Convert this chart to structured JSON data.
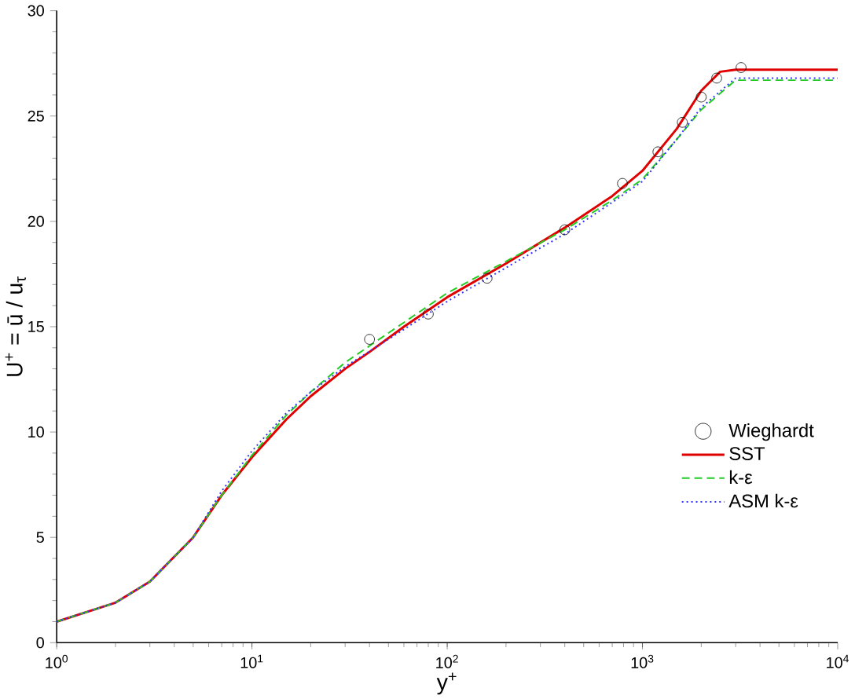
{
  "chart_data": {
    "type": "line",
    "xlabel": "y$^{+}$",
    "ylabel": "U$^{+}$ = ū / u$_{τ}$",
    "log": "x",
    "grid": false,
    "legend": "right",
    "xlim": [
      1,
      10000
    ],
    "xticks": [
      {
        "value": 1,
        "label": "10$^{0}$"
      },
      {
        "value": 10,
        "label": "10$^{1}$"
      },
      {
        "value": 100,
        "label": "10$^{2}$"
      },
      {
        "value": 1000,
        "label": "10$^{3}$"
      },
      {
        "value": 10000,
        "label": "10$^{4}$"
      }
    ],
    "ylim": [
      0,
      30
    ],
    "yticks": [
      0,
      5,
      10,
      15,
      20,
      25,
      30
    ],
    "series": [
      {
        "name": "Wieghardt",
        "type": "scatter",
        "marker": "circle",
        "color": "#000000",
        "x": [
          40,
          80,
          160,
          400,
          790,
          1200,
          1600,
          2000,
          2400,
          3200
        ],
        "values": [
          14.4,
          15.6,
          17.3,
          19.6,
          21.8,
          23.3,
          24.7,
          25.9,
          26.8,
          27.3
        ]
      },
      {
        "name": "SST",
        "line_style": "solid",
        "color": "#e00000",
        "x": [
          1,
          2,
          3,
          5,
          7,
          10,
          15,
          20,
          30,
          40,
          60,
          100,
          200,
          400,
          700,
          1000,
          1500,
          2000,
          2500,
          3000,
          10000
        ],
        "values": [
          1,
          1.9,
          2.9,
          5,
          7,
          8.8,
          10.6,
          11.7,
          13,
          13.8,
          15,
          16.4,
          18,
          19.7,
          21.2,
          22.4,
          24.4,
          26.2,
          27.1,
          27.2,
          27.2
        ]
      },
      {
        "name": "k-ε",
        "line_style": "dashed",
        "color": "#22cc22",
        "x": [
          1,
          2,
          3,
          5,
          7,
          10,
          15,
          20,
          30,
          50,
          100,
          200,
          400,
          700,
          1000,
          1500,
          2000,
          3000,
          10000
        ],
        "values": [
          1,
          1.9,
          2.9,
          5,
          7,
          8.9,
          10.8,
          11.9,
          13.3,
          14.7,
          16.6,
          18.1,
          19.6,
          21,
          22,
          23.9,
          25.3,
          26.7,
          26.7
        ]
      },
      {
        "name": "ASM k-ε",
        "line_style": "dotted",
        "color": "#3333ff",
        "x": [
          1,
          2,
          3,
          5,
          7,
          10,
          15,
          20,
          30,
          50,
          100,
          200,
          400,
          700,
          1000,
          1500,
          2000,
          3000,
          10000
        ],
        "values": [
          1,
          1.9,
          2.9,
          5,
          7.2,
          9.1,
          10.9,
          11.9,
          13.1,
          14.4,
          16.2,
          17.8,
          19.4,
          20.9,
          21.9,
          23.9,
          25.4,
          26.8,
          26.8
        ]
      }
    ]
  }
}
